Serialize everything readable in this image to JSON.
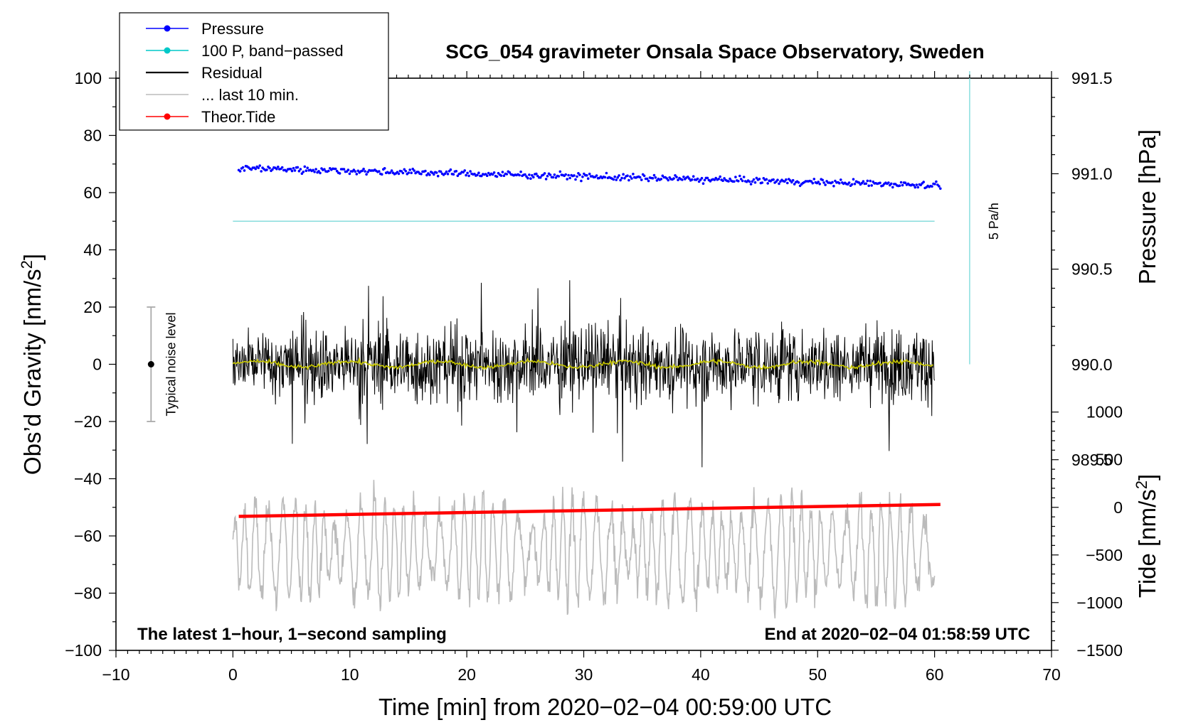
{
  "chart_data": {
    "type": "line",
    "title": "SCG_054 gravimeter Onsala Space Observatory, Sweden",
    "xlabel": "Time [min] from 2020−02−04 00:59:00 UTC",
    "ylabel_left": "Obs’d Gravity [nm/s",
    "ylabel_left_sup": "2",
    "ylabel_left_close": "]",
    "ylabel_right_top": "Pressure [hPa]",
    "ylabel_right_bottom": "Tide [nm/s",
    "ylabel_right_bottom_sup": "2",
    "ylabel_right_bottom_close": "]",
    "xlim": [
      -10,
      70
    ],
    "ylim": [
      -100,
      100
    ],
    "x_ticks": [
      -10,
      0,
      10,
      20,
      30,
      40,
      50,
      60,
      70
    ],
    "x_tick_labels": [
      "−10",
      "0",
      "10",
      "20",
      "30",
      "40",
      "50",
      "60",
      "70"
    ],
    "y_ticks": [
      100,
      80,
      60,
      40,
      20,
      0,
      -20,
      -40,
      -60,
      -80,
      -100
    ],
    "y_tick_labels": [
      "100",
      "80",
      "60",
      "40",
      "20",
      "0",
      "−20",
      "−40",
      "−60",
      "−80",
      "−100"
    ],
    "pressure_axis": {
      "ticks": [
        991.5,
        991.0,
        990.5,
        990.0,
        989.5
      ],
      "tick_labels": [
        "991.5",
        "991.0",
        "990.5",
        "990.0",
        "989.5"
      ],
      "left_equiv_at_991": 66.6,
      "left_units_per_hpa": 66.7
    },
    "tide_axis": {
      "ticks": [
        1000,
        500,
        0,
        -500,
        -1000,
        -1500
      ],
      "tick_labels": [
        "1000",
        "500",
        "0",
        "−500",
        "−1000",
        "−1500"
      ],
      "left_equiv_at_0": -50,
      "left_units_per_1000": 33.3
    },
    "legend": [
      {
        "label": "Pressure",
        "color": "#0000ff",
        "marker": true
      },
      {
        "label": "100 P, band−passed",
        "color": "#00c8c8",
        "marker": true
      },
      {
        "label": "Residual",
        "color": "#000000",
        "marker": false
      },
      {
        "label": "... last 10 min.",
        "color": "#bbbbbb",
        "marker": false
      },
      {
        "label": "Theor.Tide",
        "color": "#ff0000",
        "marker": true
      }
    ],
    "legend_position": "top-left",
    "series": [
      {
        "name": "Pressure",
        "color": "#0000ff",
        "units": "hPa",
        "x_range": [
          0.5,
          60.5
        ],
        "start": 991.03,
        "end": 990.94
      },
      {
        "name": "100 P, band−passed",
        "color": "#88dddd",
        "x_range": [
          0,
          60
        ],
        "value": 50
      },
      {
        "name": "Residual",
        "color": "#000000",
        "x_range": [
          0,
          60
        ],
        "mean": 0,
        "amplitude": 30
      },
      {
        "name": "Residual (smoothed)",
        "color": "#c8c800",
        "x_range": [
          0,
          60
        ],
        "mean": 0,
        "amplitude": 1.5
      },
      {
        "name": "... last 10 min.",
        "color": "#bbbbbb",
        "x_range": [
          0,
          60
        ],
        "mean": -65,
        "amplitude": 18
      },
      {
        "name": "Theor.Tide",
        "color": "#ff0000",
        "units": "nm/s2",
        "x_range": [
          0.5,
          60.5
        ],
        "start": -95,
        "end": 30
      }
    ],
    "noise_bar": {
      "x": -7,
      "center": 0,
      "low": -20,
      "high": 20,
      "label": "Typical noise level"
    },
    "rate_bar": {
      "x": 63,
      "low": 0,
      "high": 100,
      "label": "5 Pa/h",
      "color": "#88dddd"
    },
    "annotation_left": "The latest 1−hour, 1−second sampling",
    "annotation_right": "End at 2020−02−04 01:58:59 UTC"
  }
}
